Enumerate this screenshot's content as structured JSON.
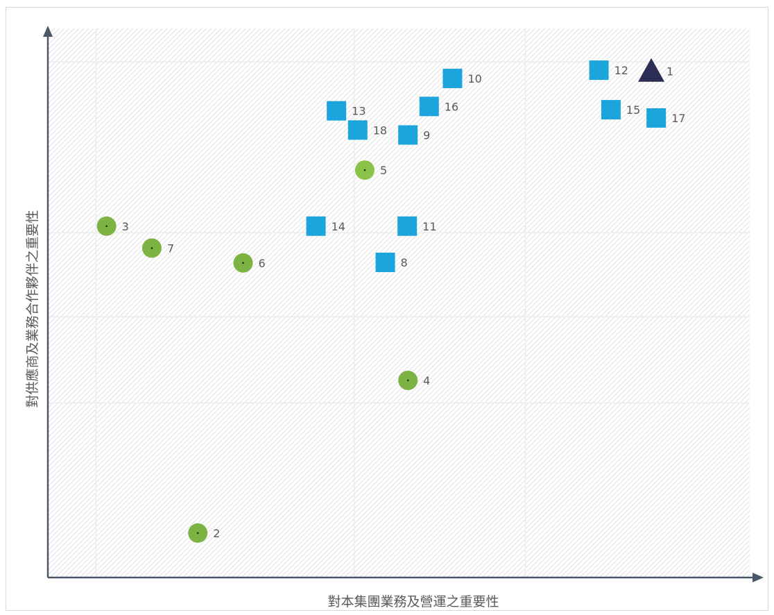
{
  "chart_data": {
    "type": "scatter",
    "title": "",
    "xlabel": "對本集團業務及營運之重要性",
    "ylabel": "對供應商及業務合作夥伴之重要性",
    "xlim": [
      0,
      100
    ],
    "ylim": [
      0,
      100
    ],
    "grid": true,
    "legend": "none",
    "colors": {
      "circle_dark": "#7cb342",
      "circle_light": "#8bc34a",
      "square": "#1ba5dc",
      "triangle": "#2b2d54",
      "axis": "#4a5868",
      "label": "#595959"
    },
    "points": [
      {
        "id": "1",
        "x": 85.3,
        "y": 92.2,
        "marker": "triangle"
      },
      {
        "id": "2",
        "x": 21.2,
        "y": 8.1,
        "marker": "circle"
      },
      {
        "id": "3",
        "x": 8.3,
        "y": 64.0,
        "marker": "circle"
      },
      {
        "id": "4",
        "x": 50.9,
        "y": 35.9,
        "marker": "circle"
      },
      {
        "id": "5",
        "x": 44.8,
        "y": 74.2,
        "marker": "circle-light"
      },
      {
        "id": "6",
        "x": 27.6,
        "y": 57.3,
        "marker": "circle"
      },
      {
        "id": "7",
        "x": 14.7,
        "y": 60.0,
        "marker": "circle"
      },
      {
        "id": "8",
        "x": 47.7,
        "y": 57.4,
        "marker": "square"
      },
      {
        "id": "9",
        "x": 50.9,
        "y": 80.6,
        "marker": "square"
      },
      {
        "id": "10",
        "x": 57.2,
        "y": 90.9,
        "marker": "square"
      },
      {
        "id": "11",
        "x": 50.8,
        "y": 64.0,
        "marker": "square"
      },
      {
        "id": "12",
        "x": 77.9,
        "y": 92.4,
        "marker": "square"
      },
      {
        "id": "13",
        "x": 40.8,
        "y": 85.0,
        "marker": "square"
      },
      {
        "id": "14",
        "x": 37.9,
        "y": 64.0,
        "marker": "square"
      },
      {
        "id": "15",
        "x": 79.6,
        "y": 85.2,
        "marker": "square"
      },
      {
        "id": "16",
        "x": 53.9,
        "y": 85.8,
        "marker": "square"
      },
      {
        "id": "17",
        "x": 86.0,
        "y": 83.7,
        "marker": "square"
      },
      {
        "id": "18",
        "x": 43.8,
        "y": 81.5,
        "marker": "square"
      }
    ]
  }
}
